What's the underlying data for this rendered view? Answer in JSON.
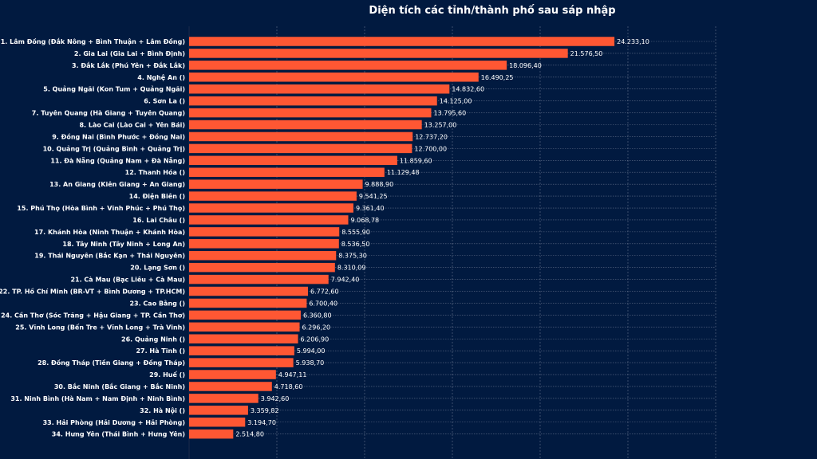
{
  "chart_data": {
    "type": "bar",
    "orientation": "horizontal",
    "title": "Diện tích các tỉnh/thành phố sau sáp nhập",
    "xlabel": "",
    "ylabel": "",
    "xlim": [
      0,
      30000
    ],
    "grid": true,
    "legend": "none",
    "bar_color": "#ff5733",
    "background_color": "#011a40",
    "categories": [
      "1. Lâm Đồng (Đắk Nông + Bình Thuận + Lâm Đồng)",
      "2. Gia Lai (Gia Lai + Bình Định)",
      "3. Đắk Lắk (Phú Yên + Đắk Lắk)",
      "4. Nghệ An ()",
      "5. Quảng Ngãi (Kon Tum + Quảng Ngãi)",
      "6. Sơn La ()",
      "7. Tuyên Quang (Hà Giang + Tuyên Quang)",
      "8. Lào Cai (Lào Cai + Yên Bái)",
      "9. Đồng Nai (Bình Phước + Đồng Nai)",
      "10. Quảng Trị (Quảng Bình + Quảng Trị)",
      "11. Đà Nẵng (Quảng Nam + Đà Nẵng)",
      "12. Thanh Hóa ()",
      "13. An Giang (Kiên Giang + An Giang)",
      "14. Điện Biên ()",
      "15. Phú Thọ (Hòa Bình + Vĩnh Phúc + Phú Thọ)",
      "16. Lai Châu ()",
      "17. Khánh Hòa (Ninh Thuận + Khánh Hòa)",
      "18. Tây Ninh (Tây Ninh + Long An)",
      "19. Thái Nguyên (Bắc Kạn + Thái Nguyên)",
      "20. Lạng Sơn ()",
      "21. Cà Mau (Bạc Liêu + Cà Mau)",
      "22. TP. Hồ Chí Minh (BR-VT + Bình Dương + TP.HCM)",
      "23. Cao Bằng ()",
      "24. Cần Thơ (Sóc Trăng + Hậu Giang + TP. Cần Thơ)",
      "25. Vĩnh Long (Bến Tre + Vĩnh Long + Trà Vinh)",
      "26. Quảng Ninh ()",
      "27. Hà Tĩnh ()",
      "28. Đồng Tháp (Tiền Giang + Đồng Tháp)",
      "29. Huế ()",
      "30. Bắc Ninh (Bắc Giang + Bắc Ninh)",
      "31. Ninh Bình (Hà Nam + Nam Định + Ninh Bình)",
      "32. Hà Nội ()",
      "33. Hải Phòng (Hải Dương + Hải Phòng)",
      "34. Hưng Yên (Thái Bình + Hưng Yên)"
    ],
    "values": [
      24233.1,
      21576.5,
      18096.4,
      16490.25,
      14832.6,
      14125.0,
      13795.6,
      13257.0,
      12737.2,
      12700.0,
      11859.6,
      11129.48,
      9888.9,
      9541.25,
      9361.4,
      9068.78,
      8555.9,
      8536.5,
      8375.3,
      8310.09,
      7942.4,
      6772.6,
      6700.4,
      6360.8,
      6296.2,
      6206.9,
      5994.0,
      5938.7,
      4947.11,
      4718.6,
      3942.6,
      3359.82,
      3194.7,
      2514.8
    ],
    "value_labels": [
      "24.233,10",
      "21.576,50",
      "18.096,40",
      "16.490,25",
      "14.832,60",
      "14.125,00",
      "13.795,60",
      "13.257,00",
      "12.737,20",
      "12.700,00",
      "11.859,60",
      "11.129,48",
      "9.888,90",
      "9.541,25",
      "9.361,40",
      "9.068,78",
      "8.555,90",
      "8.536,50",
      "8.375,30",
      "8.310,09",
      "7.942,40",
      "6.772,60",
      "6.700,40",
      "6.360,80",
      "6.296,20",
      "6.206,90",
      "5.994,00",
      "5.938,70",
      "4.947,11",
      "4.718,60",
      "3.942,60",
      "3.359,82",
      "3.194,70",
      "2.514,80"
    ],
    "x_gridlines": [
      0,
      5000,
      10000,
      15000,
      20000,
      25000,
      30000
    ]
  }
}
